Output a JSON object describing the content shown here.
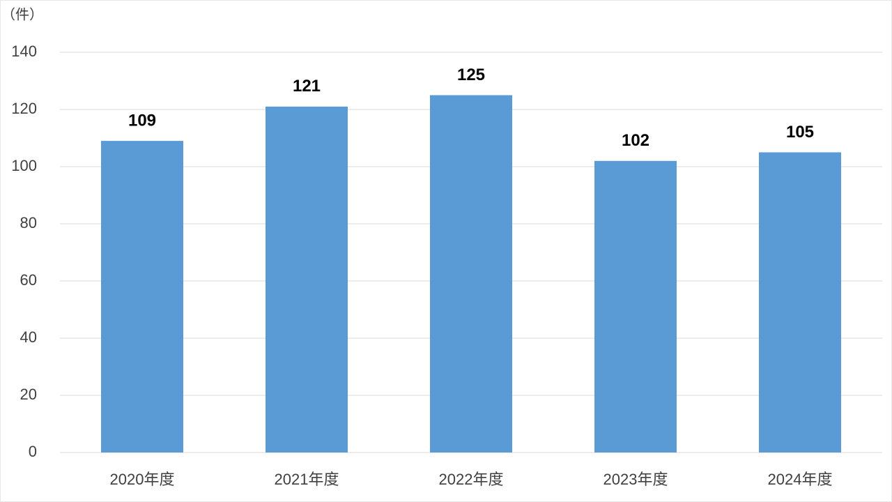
{
  "chart_data": {
    "type": "bar",
    "y_label": "（件）",
    "categories": [
      "2020年度",
      "2021年度",
      "2022年度",
      "2023年度",
      "2024年度"
    ],
    "values": [
      109,
      121,
      125,
      102,
      105
    ],
    "color": "#5b9bd5",
    "ylim": [
      0,
      140
    ],
    "yticks": [
      0,
      20,
      40,
      60,
      80,
      100,
      120,
      140
    ],
    "grid": true
  }
}
